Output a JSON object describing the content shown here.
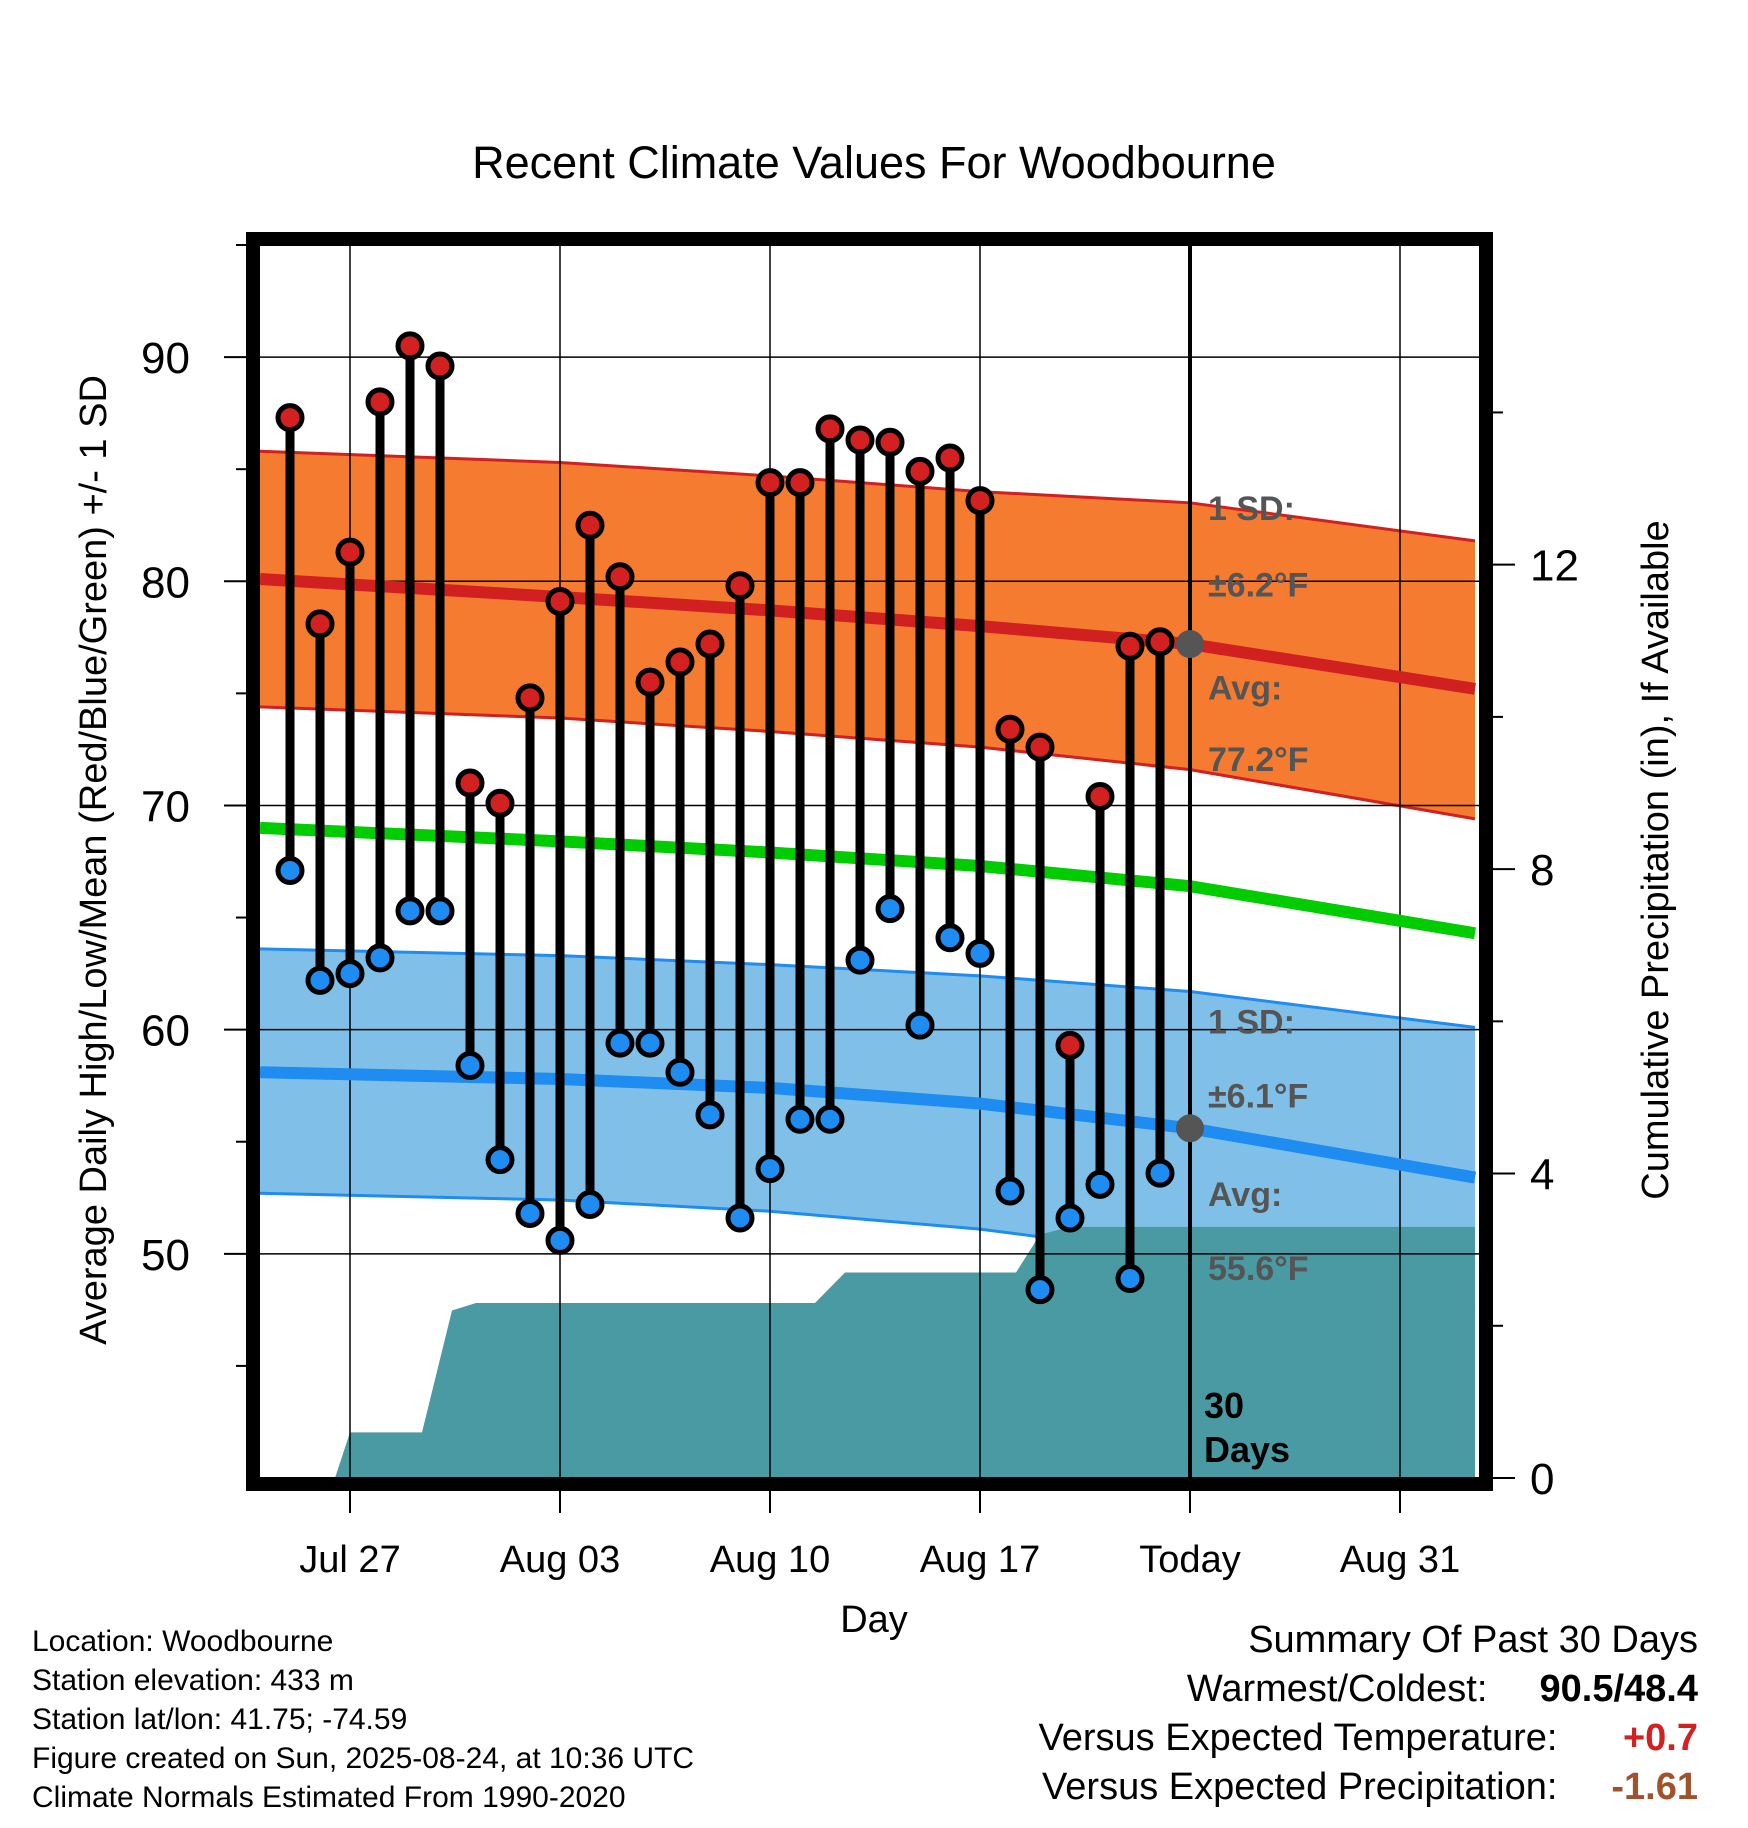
{
  "chart_data": {
    "type": "line",
    "title": "Recent Climate Values For Woodbourne",
    "xlabel": "Day",
    "ylabel": "Average Daily High/Low/Mean (Red/Blue/Green) +/- 1 SD",
    "y2label": "Cumulative Precipitation (in), If Available",
    "x_tick_labels": [
      "Jul 27",
      "Aug 03",
      "Aug 10",
      "Aug 17",
      "Today",
      "Aug 31"
    ],
    "x_ticks_day_offset": [
      -28,
      -21,
      -14,
      -7,
      0,
      7
    ],
    "xlim_day_offset": [
      -31.5,
      9.5
    ],
    "ylim": [
      40,
      95
    ],
    "y_ticks": [
      50,
      60,
      70,
      80,
      90
    ],
    "y2lim": [
      0,
      16.2
    ],
    "y2_ticks": [
      0,
      4,
      8,
      12
    ],
    "grid": true,
    "today_offset": 0,
    "days_label": "30\nDays",
    "observations": {
      "day_offset": [
        -30,
        -29,
        -28,
        -27,
        -26,
        -25,
        -24,
        -23,
        -22,
        -21,
        -20,
        -19,
        -18,
        -17,
        -16,
        -15,
        -14,
        -13,
        -12,
        -11,
        -10,
        -9,
        -8,
        -7,
        -6,
        -5,
        -4,
        -3,
        -2,
        -1
      ],
      "high": [
        87.3,
        78.1,
        81.3,
        88.0,
        90.5,
        89.6,
        71.0,
        70.1,
        74.8,
        79.1,
        82.5,
        80.2,
        75.5,
        76.4,
        77.2,
        79.8,
        84.4,
        84.4,
        86.8,
        86.3,
        86.2,
        84.9,
        85.5,
        83.6,
        73.4,
        72.6,
        59.3,
        70.4,
        77.1,
        77.3
      ],
      "low": [
        67.1,
        62.2,
        62.5,
        63.2,
        65.3,
        65.3,
        58.4,
        54.2,
        51.8,
        50.6,
        52.2,
        59.4,
        59.4,
        58.1,
        56.2,
        51.6,
        53.8,
        56.0,
        56.0,
        63.1,
        65.4,
        60.2,
        64.1,
        63.4,
        52.8,
        48.4,
        51.6,
        53.1,
        48.9,
        53.6
      ]
    },
    "normals": {
      "day_offset": [
        -31,
        -21,
        -14,
        -7,
        0,
        9.5
      ],
      "mean_high": [
        80.1,
        79.3,
        78.7,
        78.0,
        77.2,
        75.2
      ],
      "high_sd_upper": [
        85.8,
        85.3,
        84.7,
        84.0,
        83.5,
        81.8
      ],
      "high_sd_lower": [
        74.4,
        73.9,
        73.3,
        72.6,
        71.6,
        69.4
      ],
      "mean": [
        69.0,
        68.4,
        67.9,
        67.3,
        66.4,
        64.3
      ],
      "mean_low": [
        58.1,
        57.8,
        57.4,
        56.7,
        55.6,
        53.4
      ],
      "low_sd_upper": [
        63.6,
        63.3,
        62.9,
        62.4,
        61.7,
        60.1
      ],
      "low_sd_lower": [
        52.7,
        52.4,
        51.9,
        51.1,
        49.9,
        47.5
      ]
    },
    "precipitation": {
      "day_offset": [
        -28.5,
        -28,
        -25.6,
        -24.6,
        -23.8,
        -21,
        -14,
        -12.5,
        -11.5,
        -7,
        -5.8,
        -5,
        -4,
        0,
        9.5
      ],
      "cumulative_in": [
        0,
        0.6,
        0.6,
        2.2,
        2.3,
        2.3,
        2.3,
        2.3,
        2.7,
        2.7,
        2.7,
        3.2,
        3.3,
        3.3,
        3.3
      ]
    },
    "annotations": {
      "high_sd": "1 SD:",
      "high_sd_value": "±6.2°F",
      "high_avg": "Avg:",
      "high_avg_value": "77.2°F",
      "low_sd": "1 SD:",
      "low_sd_value": "±6.1°F",
      "low_avg": "Avg:",
      "low_avg_value": "55.6°F"
    },
    "colors": {
      "high_band": "#f47b30",
      "high_line": "#d02020",
      "mean_line": "#00cc00",
      "low_band": "#80c0e8",
      "low_line": "#1e8cf0",
      "precip": "#4a9aa4",
      "high_dot": "#d32020",
      "low_dot": "#1e8cf0",
      "annotation_text": "#555555"
    }
  },
  "info": {
    "location": "Location: Woodbourne",
    "elevation": "Station elevation: 433 m",
    "latlon": "Station lat/lon: 41.75; -74.59",
    "created": "Figure created on Sun, 2025-08-24, at 10:36 UTC",
    "normals": "Climate Normals Estimated From 1990-2020"
  },
  "summary": {
    "heading": "Summary Of Past 30 Days",
    "warmest_label": "Warmest/Coldest:",
    "warmest_value": "90.5/48.4",
    "temp_label": "Versus Expected Temperature:",
    "temp_value": "+0.7",
    "temp_color": "#d32020",
    "precip_label": "Versus Expected Precipitation:",
    "precip_value": "-1.61",
    "precip_color": "#a0522d"
  }
}
